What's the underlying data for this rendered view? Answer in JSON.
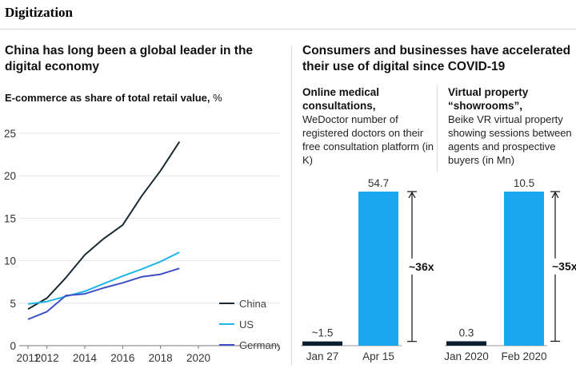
{
  "section_title": "Digitization",
  "left_panel": {
    "title": "China has long been a global leader in the digital economy",
    "chart_title": "E-commerce as share of total retail value,",
    "chart_unit": "%"
  },
  "right_panel": {
    "title": "Consumers and businesses have accelerated their use of digital since COVID-19"
  },
  "medical": {
    "title": "Online medical consultations,",
    "desc": "WeDoctor number of registered doctors on their free consultation platform (in K)"
  },
  "property": {
    "title": "Virtual property “showrooms”,",
    "desc": "Beike VR virtual property showing sessions between agents and prospective buyers (in Mn)"
  },
  "colors": {
    "china": "#1a2a33",
    "us": "#21b5e8",
    "germany": "#3d4fc4",
    "bar_before": "#0b1f33",
    "bar_after": "#1aa6ee"
  },
  "chart_data": [
    {
      "type": "line",
      "xlabel": "",
      "ylabel": "",
      "xlim": [
        2011,
        2020
      ],
      "ylim": [
        0,
        25
      ],
      "x_ticks": [
        "2011",
        "2012",
        "2014",
        "2016",
        "2018",
        "2020"
      ],
      "y_ticks": [
        "0",
        "5",
        "10",
        "15",
        "20",
        "25"
      ],
      "legend_position": "bottom-right",
      "series": [
        {
          "name": "China",
          "x": [
            2011,
            2012,
            2013,
            2014,
            2015,
            2016,
            2017,
            2018,
            2019
          ],
          "y": [
            4.3,
            5.6,
            8.0,
            10.7,
            12.6,
            14.2,
            17.6,
            20.6,
            24.0
          ]
        },
        {
          "name": "US",
          "x": [
            2011,
            2012,
            2013,
            2014,
            2015,
            2016,
            2017,
            2018,
            2019
          ],
          "y": [
            4.9,
            5.2,
            5.8,
            6.4,
            7.3,
            8.2,
            9.0,
            9.9,
            11.0
          ]
        },
        {
          "name": "Germany",
          "x": [
            2011,
            2012,
            2013,
            2014,
            2015,
            2016,
            2017,
            2018,
            2019
          ],
          "y": [
            3.1,
            4.0,
            5.9,
            6.1,
            6.8,
            7.4,
            8.1,
            8.4,
            9.1
          ]
        }
      ]
    },
    {
      "type": "bar",
      "categories": [
        "Jan 27",
        "Apr 15"
      ],
      "values": [
        1.5,
        54.7
      ],
      "value_labels": [
        "~1.5",
        "54.7"
      ],
      "annotation": "~36x"
    },
    {
      "type": "bar",
      "categories": [
        "Jan 2020",
        "Feb 2020"
      ],
      "values": [
        0.3,
        10.5
      ],
      "value_labels": [
        "0.3",
        "10.5"
      ],
      "annotation": "~35x"
    }
  ]
}
